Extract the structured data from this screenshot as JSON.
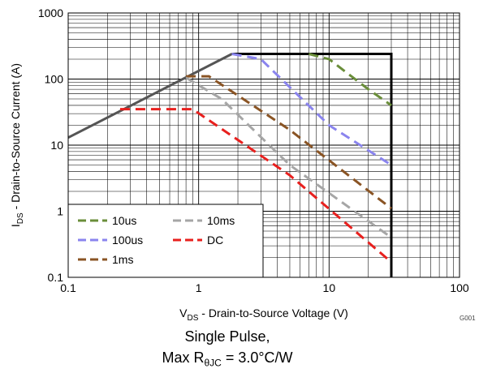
{
  "chart_data": {
    "type": "line",
    "x_scale": "log",
    "y_scale": "log",
    "xlim": [
      0.1,
      100
    ],
    "ylim": [
      0.1,
      1000
    ],
    "grid": true,
    "legend_position": "bottom-left",
    "xlabel": {
      "main": "V",
      "sub": "DS",
      "rest": " - Drain-to-Source Voltage (V)"
    },
    "ylabel": {
      "main": "I",
      "sub": "DS",
      "rest": " - Drain-to-Source Current (A)"
    },
    "x_ticks": [
      "0.1",
      "1",
      "10",
      "100"
    ],
    "y_ticks": [
      "0.1",
      "1",
      "10",
      "100",
      "1000"
    ],
    "figure_code": "G001",
    "caption_line1": "Single Pulse,",
    "caption_line2": {
      "pre": "Max R",
      "sub": "θJC",
      "post": " = 3.0°C/W"
    },
    "soa_boundary": {
      "color": "#555555",
      "x": [
        0.1,
        1.8,
        1.8,
        30,
        30
      ],
      "y": [
        13,
        240,
        240,
        240,
        0.1
      ]
    },
    "soa_max_voltage": {
      "x": 30,
      "color": "#000000"
    },
    "series": [
      {
        "name": "10us",
        "color": "#6a8e3a",
        "x": [
          7,
          10,
          20,
          30
        ],
        "y": [
          240,
          200,
          70,
          40
        ]
      },
      {
        "name": "100us",
        "color": "#8a84ee",
        "x": [
          1.8,
          3,
          10,
          30
        ],
        "y": [
          240,
          200,
          20,
          5
        ]
      },
      {
        "name": "1ms",
        "color": "#8a5424",
        "x": [
          0.8,
          1.2,
          5,
          30
        ],
        "y": [
          110,
          110,
          17,
          1.1
        ]
      },
      {
        "name": "10ms",
        "color": "#a6a6a6",
        "x": [
          0.8,
          1.5,
          5,
          30
        ],
        "y": [
          105,
          50,
          5,
          0.4
        ]
      },
      {
        "name": "DC",
        "color": "#e8201e",
        "x": [
          0.25,
          0.9,
          5,
          30
        ],
        "y": [
          35,
          35,
          3.5,
          0.17
        ]
      }
    ]
  }
}
